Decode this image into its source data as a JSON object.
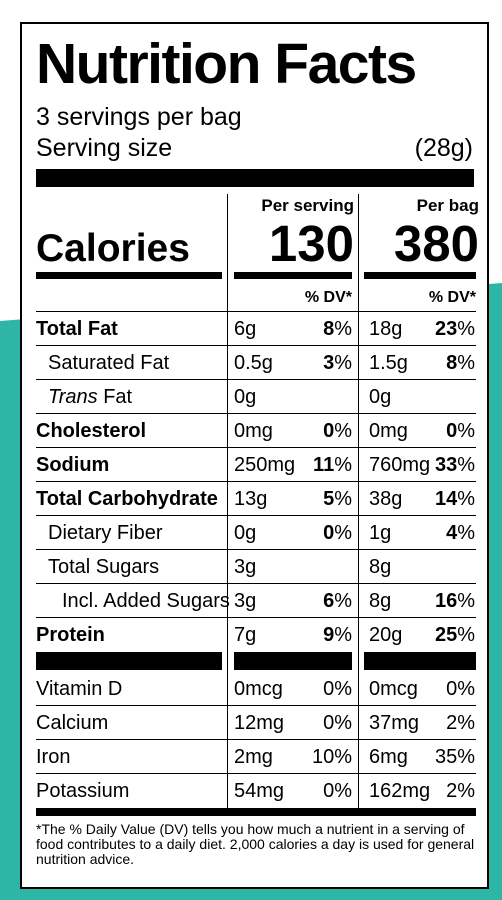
{
  "title": "Nutrition Facts",
  "servings_per_container": "3 servings per bag",
  "serving_size_label": "Serving size",
  "serving_size_value": "(28g)",
  "columns": {
    "per_serving": "Per serving",
    "per_bag": "Per bag"
  },
  "calories": {
    "label": "Calories",
    "per_serving": "130",
    "per_bag": "380"
  },
  "dv_header": "% DV*",
  "nutrients": [
    {
      "name": "Total Fat",
      "amount1": "6g",
      "dv1": "8",
      "amount2": "18g",
      "dv2": "23"
    },
    {
      "name": "Saturated Fat",
      "amount1": "0.5g",
      "dv1": "3",
      "amount2": "1.5g",
      "dv2": "8"
    },
    {
      "name_prefix": "Trans",
      "name_suffix": " Fat",
      "amount1": "0g",
      "dv1": "",
      "amount2": "0g",
      "dv2": ""
    },
    {
      "name": "Cholesterol",
      "amount1": "0mg",
      "dv1": "0",
      "amount2": "0mg",
      "dv2": "0"
    },
    {
      "name": "Sodium",
      "amount1": "250mg",
      "dv1": "11",
      "amount2": "760mg",
      "dv2": "33"
    },
    {
      "name": "Total Carbohydrate",
      "amount1": "13g",
      "dv1": "5",
      "amount2": "38g",
      "dv2": "14"
    },
    {
      "name": "Dietary Fiber",
      "amount1": "0g",
      "dv1": "0",
      "amount2": "1g",
      "dv2": "4"
    },
    {
      "name": "Total Sugars",
      "amount1": "3g",
      "dv1": "",
      "amount2": "8g",
      "dv2": ""
    },
    {
      "name": "Incl. Added Sugars",
      "amount1": "3g",
      "dv1": "6",
      "amount2": "8g",
      "dv2": "16"
    },
    {
      "name": "Protein",
      "amount1": "7g",
      "dv1": "9",
      "amount2": "20g",
      "dv2": "25"
    }
  ],
  "pct": "%",
  "vitamins": [
    {
      "name": "Vitamin D",
      "amount1": "0mcg",
      "dv1": "0%",
      "amount2": "0mcg",
      "dv2": "0%"
    },
    {
      "name": "Calcium",
      "amount1": "12mg",
      "dv1": "0%",
      "amount2": "37mg",
      "dv2": "2%"
    },
    {
      "name": "Iron",
      "amount1": "2mg",
      "dv1": "10%",
      "amount2": "6mg",
      "dv2": "35%"
    },
    {
      "name": "Potassium",
      "amount1": "54mg",
      "dv1": "0%",
      "amount2": "162mg",
      "dv2": "2%"
    }
  ],
  "footnote": "*The % Daily Value (DV) tells you how much a nutrient in a serving of food contributes to a daily diet. 2,000 calories a day is used for general nutrition advice.",
  "colors": {
    "background_accent": "#2db5a5",
    "label_bg": "#ffffff",
    "ink": "#000000"
  }
}
